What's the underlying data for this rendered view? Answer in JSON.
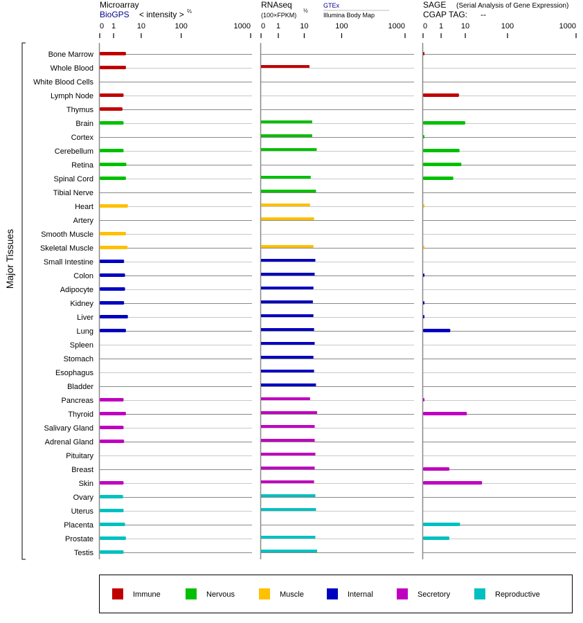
{
  "chart_data": {
    "type": "bar",
    "orientation": "horizontal",
    "ylabel": "Major Tissues",
    "categories": [
      "Bone Marrow",
      "Whole Blood",
      "White Blood Cells",
      "Lymph Node",
      "Thymus",
      "Brain",
      "Cortex",
      "Cerebellum",
      "Retina",
      "Spinal Cord",
      "Tibial Nerve",
      "Heart",
      "Artery",
      "Smooth Muscle",
      "Skeletal Muscle",
      "Small Intestine",
      "Colon",
      "Adipocyte",
      "Kidney",
      "Liver",
      "Lung",
      "Spleen",
      "Stomach",
      "Esophagus",
      "Bladder",
      "Pancreas",
      "Thyroid",
      "Salivary Gland",
      "Adrenal Gland",
      "Pituitary",
      "Breast",
      "Skin",
      "Ovary",
      "Uterus",
      "Placenta",
      "Prostate",
      "Testis"
    ],
    "category_groups": [
      "immune",
      "immune",
      "immune",
      "immune",
      "immune",
      "nervous",
      "nervous",
      "nervous",
      "nervous",
      "nervous",
      "nervous",
      "muscle",
      "muscle",
      "muscle",
      "muscle",
      "internal",
      "internal",
      "internal",
      "internal",
      "internal",
      "internal",
      "internal",
      "internal",
      "internal",
      "internal",
      "secretory",
      "secretory",
      "secretory",
      "secretory",
      "secretory",
      "secretory",
      "secretory",
      "reproductive",
      "reproductive",
      "reproductive",
      "reproductive",
      "reproductive"
    ],
    "groups": {
      "immune": {
        "label": "Immune",
        "color": "#c00000"
      },
      "nervous": {
        "label": "Nervous",
        "color": "#00c000"
      },
      "muscle": {
        "label": "Muscle",
        "color": "#ffc000"
      },
      "internal": {
        "label": "Internal",
        "color": "#0000c0"
      },
      "secretory": {
        "label": "Secretory",
        "color": "#c000c0"
      },
      "reproductive": {
        "label": "Reproductive",
        "color": "#00c0c0"
      }
    },
    "legend_order": [
      "immune",
      "nervous",
      "muscle",
      "internal",
      "secretory",
      "reproductive"
    ],
    "legend_position": "bottom",
    "panels": [
      {
        "title": "Microarray",
        "source": "BioGPS",
        "unit": "< intensity >",
        "unit_exp": "⅔",
        "ticks": [
          "0",
          "1",
          "10",
          "100",
          "1000"
        ],
        "values": [
          2.8,
          2.8,
          null,
          2.3,
          2.1,
          2.3,
          null,
          2.3,
          2.9,
          2.8,
          null,
          3.3,
          null,
          2.8,
          3.2,
          2.4,
          2.6,
          2.6,
          2.4,
          3.3,
          2.8,
          null,
          null,
          null,
          null,
          2.3,
          2.8,
          2.3,
          2.4,
          null,
          null,
          2.3,
          2.2,
          2.3,
          2.6,
          2.8,
          2.3
        ]
      },
      {
        "title": "RNAseq",
        "unit": "(100×FPKM)",
        "unit_exp": "½",
        "source": "GTEx",
        "source2": "Illumina Body Map",
        "ticks": [
          "0",
          "1",
          "10",
          "100",
          "1000"
        ],
        "values": [
          null,
          13.8,
          null,
          null,
          null,
          16.3,
          16.3,
          21.5,
          null,
          14.9,
          20.6,
          14.3,
          18.3,
          null,
          17.6,
          19.8,
          19,
          17.6,
          17,
          17.6,
          18.3,
          19,
          17.6,
          18.3,
          20.6,
          14.3,
          22,
          19,
          19,
          19.8,
          19,
          18.3,
          19.8,
          20.6,
          null,
          19.8,
          22
        ]
      },
      {
        "title": "SAGE",
        "subtitle": "(Serial Analysis of Gene Expression)",
        "tag_label": "CGAP TAG:",
        "tag_value": "--",
        "ticks": [
          "0",
          "1",
          "10",
          "100",
          "1000"
        ],
        "values": [
          0.05,
          null,
          null,
          5.5,
          null,
          10,
          0.05,
          5.8,
          6.9,
          3.2,
          null,
          0.05,
          null,
          null,
          0.05,
          null,
          0.05,
          null,
          0.05,
          0.05,
          2.4,
          null,
          null,
          null,
          null,
          0.05,
          10.9,
          null,
          null,
          null,
          2.2,
          25,
          null,
          null,
          6.1,
          2.2,
          null
        ]
      }
    ]
  }
}
